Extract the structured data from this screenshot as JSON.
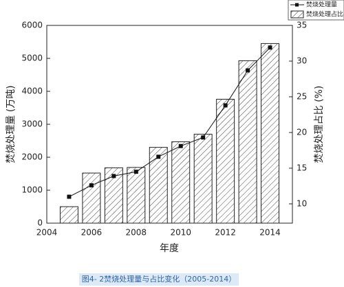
{
  "chart_data": {
    "type": "combo",
    "x": [
      2005,
      2006,
      2007,
      2008,
      2009,
      2010,
      2011,
      2012,
      2013,
      2014
    ],
    "series": [
      {
        "name": "焚烧处理量",
        "type": "line",
        "axis": "y2",
        "color": "#111111",
        "values": [
          11.0,
          12.6,
          13.9,
          14.5,
          16.6,
          18.1,
          19.3,
          23.8,
          28.7,
          31.9
        ]
      },
      {
        "name": "焚烧处理占比",
        "type": "bar",
        "color": "#444444",
        "values": [
          500,
          1520,
          1680,
          1690,
          2300,
          2470,
          2700,
          3760,
          4930,
          5450
        ]
      }
    ],
    "xlabel": "年度",
    "ylabel": "焚烧处理量 (万吨)",
    "y2label": "焚烧处理占比 (%)",
    "xlim": [
      2004,
      2015
    ],
    "xticks": [
      2004,
      2006,
      2008,
      2010,
      2012,
      2014
    ],
    "ylim": [
      0,
      6000
    ],
    "yticks": [
      0,
      1000,
      2000,
      3000,
      4000,
      5000,
      6000
    ],
    "y2lim": [
      7.3,
      35
    ],
    "y2ticks": [
      10,
      15,
      20,
      25,
      30,
      35
    ],
    "caption": "图4- 2焚烧处理量与占比变化（2005-2014）"
  }
}
